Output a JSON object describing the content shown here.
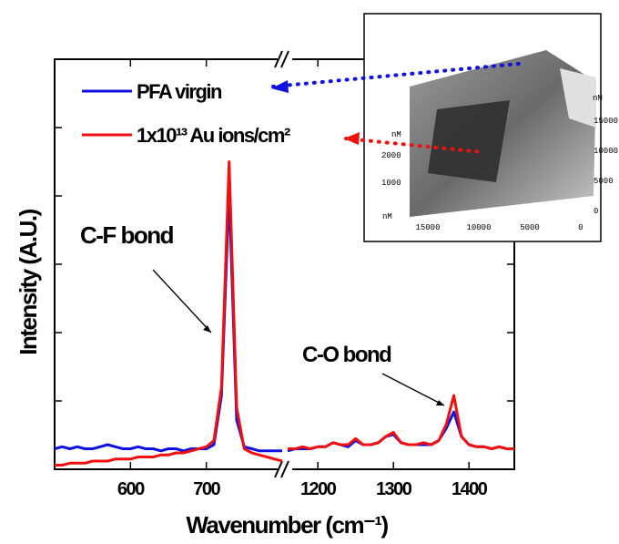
{
  "chart_data": {
    "type": "line",
    "ylabel": "Intensity (A.U.)",
    "xlabel": "Wavenumber (cm⁻¹)",
    "x": [
      500,
      510,
      520,
      530,
      540,
      550,
      560,
      570,
      580,
      590,
      600,
      610,
      620,
      630,
      640,
      650,
      660,
      670,
      680,
      690,
      700,
      710,
      720,
      730,
      740,
      750,
      760,
      770,
      780,
      790,
      800,
      980,
      1160,
      1170,
      1180,
      1190,
      1200,
      1210,
      1220,
      1230,
      1240,
      1250,
      1260,
      1270,
      1280,
      1290,
      1300,
      1310,
      1320,
      1330,
      1340,
      1350,
      1360,
      1370,
      1380,
      1390,
      1400,
      1410,
      1420,
      1430,
      1440,
      1450,
      1460
    ],
    "xlim_segments": [
      [
        500,
        800
      ],
      [
        1160,
        1460
      ]
    ],
    "xticks": [
      600,
      700,
      1200,
      1300,
      1400
    ],
    "ylim": [
      0,
      100
    ],
    "series": [
      {
        "name": "PFA virgin",
        "color": "#1010e0",
        "values": [
          5,
          5.5,
          5,
          5.5,
          5,
          5,
          5.5,
          6,
          5.5,
          5,
          5,
          5.5,
          5,
          5,
          4.5,
          5,
          5,
          4.5,
          5,
          5,
          5,
          6,
          18,
          68,
          12,
          5.5,
          5,
          4.5,
          4.5,
          4.5,
          4.5,
          null,
          4.5,
          5,
          5,
          5,
          5.5,
          5.5,
          6.5,
          6,
          5.5,
          7,
          6,
          6,
          6.5,
          8,
          8.5,
          6.5,
          6,
          6,
          6,
          6,
          7,
          10,
          14,
          8,
          6,
          5.5,
          5.5,
          5,
          5.5,
          5,
          5
        ]
      },
      {
        "name": "1x10¹³ Au ions/cm²",
        "color": "#f01010",
        "values": [
          1,
          1,
          1.5,
          1.5,
          1.5,
          2,
          2,
          2,
          2.5,
          2.5,
          2.5,
          3,
          3,
          3,
          3.5,
          3.5,
          4,
          4,
          4.5,
          5,
          5.5,
          7,
          20,
          75,
          15,
          5,
          4,
          3.5,
          3,
          2.5,
          2,
          null,
          5,
          5,
          5.5,
          5,
          5.5,
          5.5,
          6.5,
          6,
          6,
          7.5,
          6,
          6,
          6.5,
          8,
          9,
          6.5,
          6,
          6,
          6.5,
          6,
          7,
          11,
          18,
          8,
          6,
          5.5,
          5.5,
          5,
          5.5,
          5,
          5
        ]
      }
    ],
    "legend": "upper left",
    "annotations": [
      "C-F bond",
      "C-O bond"
    ],
    "inset": {
      "unit": "nM",
      "y_labels": [
        "2000",
        "1000"
      ],
      "x_labels": [
        "15000",
        "10000",
        "5000",
        "0"
      ],
      "z_labels": [
        "15000",
        "10000",
        "5000",
        "0"
      ]
    }
  }
}
